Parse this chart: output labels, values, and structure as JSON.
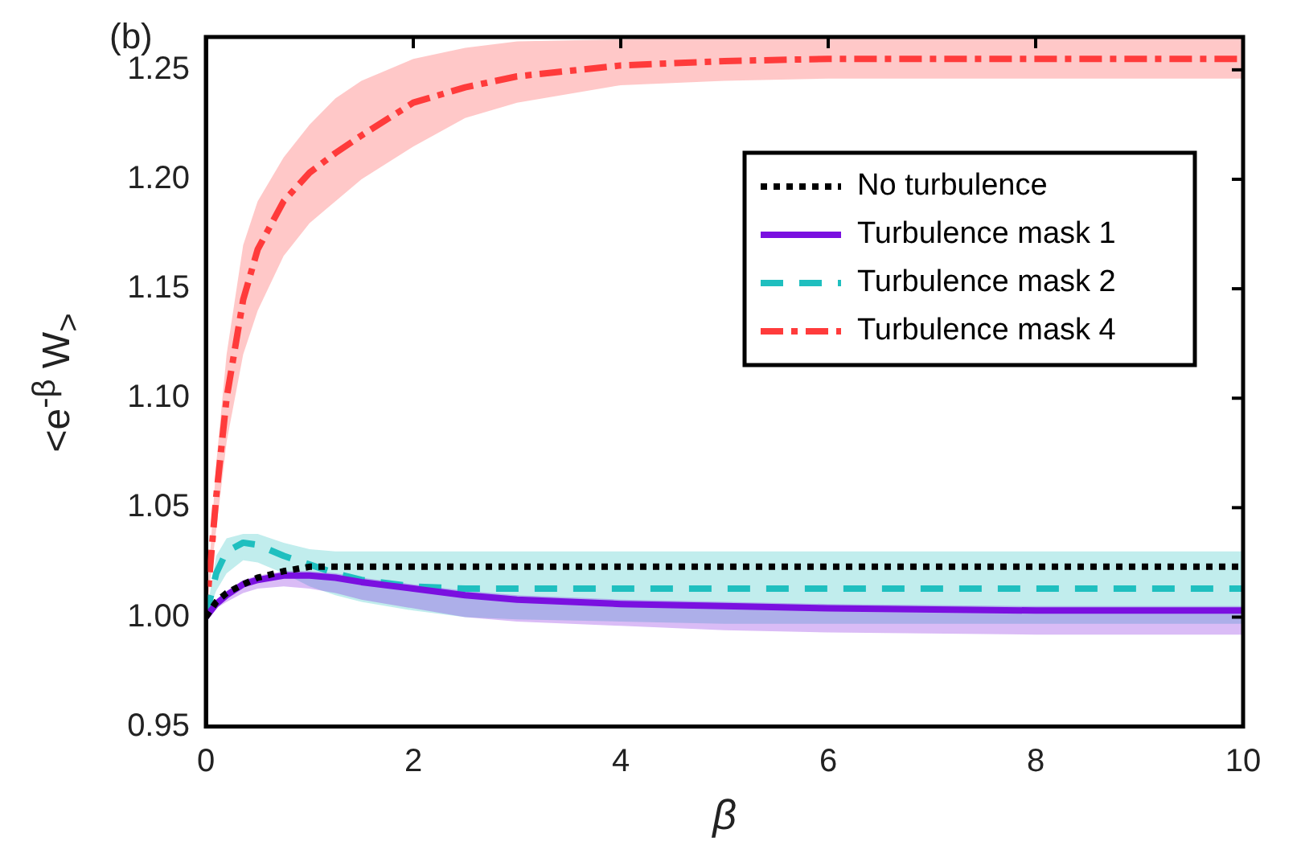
{
  "chart_data": {
    "type": "line",
    "xlabel": "β",
    "ylabel": "<e$^{-β}$ W$_{>}$",
    "annotations": [
      "(b)"
    ],
    "x": [
      0,
      0.1,
      0.2,
      0.36,
      0.5,
      0.75,
      1,
      1.25,
      1.5,
      2,
      2.5,
      3,
      4,
      5,
      6,
      8,
      10
    ],
    "series": [
      {
        "name": "No turbulence",
        "color": "#000000",
        "line_style": "dotted",
        "values": [
          1.0,
          1.007,
          1.011,
          1.015,
          1.018,
          1.021,
          1.023,
          1.023,
          1.023,
          1.023,
          1.023,
          1.023,
          1.023,
          1.023,
          1.023,
          1.023,
          1.023
        ]
      },
      {
        "name": "Turbulence mask 1",
        "color": "#7a10e0",
        "line_style": "solid",
        "values": [
          1.0,
          1.006,
          1.01,
          1.015,
          1.017,
          1.019,
          1.019,
          1.018,
          1.016,
          1.013,
          1.01,
          1.008,
          1.006,
          1.005,
          1.004,
          1.003,
          1.003
        ],
        "lower": [
          1.0,
          1.004,
          1.007,
          1.011,
          1.013,
          1.014,
          1.013,
          1.011,
          1.008,
          1.004,
          1.0,
          0.998,
          0.996,
          0.994,
          0.993,
          0.992,
          0.992
        ],
        "upper": [
          1.0,
          1.008,
          1.012,
          1.017,
          1.019,
          1.021,
          1.021,
          1.02,
          1.018,
          1.015,
          1.012,
          1.01,
          1.008,
          1.007,
          1.006,
          1.005,
          1.005
        ]
      },
      {
        "name": "Turbulence mask 2",
        "color": "#1fbfbf",
        "line_style": "dashed",
        "values": [
          1.0,
          1.02,
          1.03,
          1.034,
          1.033,
          1.028,
          1.024,
          1.02,
          1.017,
          1.014,
          1.013,
          1.013,
          1.013,
          1.013,
          1.013,
          1.013,
          1.013
        ],
        "lower": [
          1.0,
          1.012,
          1.02,
          1.026,
          1.025,
          1.02,
          1.014,
          1.01,
          1.007,
          1.003,
          1.0,
          0.999,
          0.998,
          0.997,
          0.997,
          0.997,
          0.997
        ],
        "upper": [
          1.0,
          1.028,
          1.036,
          1.038,
          1.038,
          1.034,
          1.031,
          1.03,
          1.03,
          1.03,
          1.03,
          1.03,
          1.03,
          1.03,
          1.03,
          1.03,
          1.03
        ]
      },
      {
        "name": "Turbulence mask 4",
        "color": "#ff3b3b",
        "line_style": "dashdot",
        "values": [
          1.0,
          1.055,
          1.1,
          1.145,
          1.168,
          1.19,
          1.203,
          1.212,
          1.22,
          1.235,
          1.242,
          1.247,
          1.252,
          1.254,
          1.255,
          1.255,
          1.255
        ],
        "lower": [
          1.0,
          1.04,
          1.08,
          1.12,
          1.14,
          1.165,
          1.18,
          1.19,
          1.2,
          1.215,
          1.228,
          1.235,
          1.243,
          1.245,
          1.246,
          1.246,
          1.246
        ],
        "upper": [
          1.0,
          1.07,
          1.12,
          1.17,
          1.19,
          1.21,
          1.225,
          1.237,
          1.245,
          1.255,
          1.26,
          1.263,
          1.264,
          1.265,
          1.265,
          1.265,
          1.265
        ]
      }
    ],
    "xlim": [
      0,
      10
    ],
    "xticks": [
      0,
      2,
      4,
      6,
      8,
      10
    ],
    "ylim": [
      0.95,
      1.265
    ],
    "yticks": [
      0.95,
      {
        "value": 1.0,
        "label": "1.00"
      },
      1.05,
      {
        "value": 1.1,
        "label": "1.10"
      },
      1.15,
      {
        "value": 1.2,
        "label": "1.20"
      },
      1.25
    ],
    "grid": false,
    "legend": "top right",
    "marker": "none"
  }
}
